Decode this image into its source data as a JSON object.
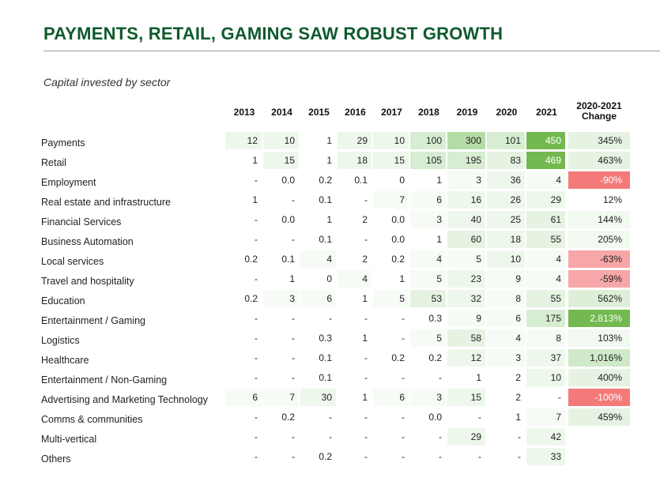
{
  "title": "PAYMENTS, RETAIL, GAMING SAW ROBUST GROWTH",
  "subtitle": "Capital invested by sector",
  "chart_data": {
    "type": "table",
    "columns": [
      "2013",
      "2014",
      "2015",
      "2016",
      "2017",
      "2018",
      "2019",
      "2020",
      "2021",
      "2020-2021 Change"
    ],
    "change_header": [
      "2020-2021",
      "Change"
    ],
    "rows": [
      {
        "sector": "Payments",
        "values": [
          "12",
          "10",
          "1",
          "29",
          "10",
          "100",
          "300",
          "101",
          "450"
        ],
        "change": "345%"
      },
      {
        "sector": "Retail",
        "values": [
          "1",
          "15",
          "1",
          "18",
          "15",
          "105",
          "195",
          "83",
          "469"
        ],
        "change": "463%"
      },
      {
        "sector": "Employment",
        "values": [
          "-",
          "0.0",
          "0.2",
          "0.1",
          "0",
          "1",
          "3",
          "36",
          "4"
        ],
        "change": "-90%"
      },
      {
        "sector": "Real estate and infrastructure",
        "values": [
          "1",
          "-",
          "0.1",
          "-",
          "7",
          "6",
          "16",
          "26",
          "29"
        ],
        "change": "12%"
      },
      {
        "sector": "Financial Services",
        "values": [
          "-",
          "0.0",
          "1",
          "2",
          "0.0",
          "3",
          "40",
          "25",
          "61"
        ],
        "change": "144%"
      },
      {
        "sector": "Business Automation",
        "values": [
          "-",
          "-",
          "0.1",
          "-",
          "0.0",
          "1",
          "60",
          "18",
          "55"
        ],
        "change": "205%"
      },
      {
        "sector": "Local services",
        "values": [
          "0.2",
          "0.1",
          "4",
          "2",
          "0.2",
          "4",
          "5",
          "10",
          "4"
        ],
        "change": "-63%"
      },
      {
        "sector": "Travel and hospitality",
        "values": [
          "-",
          "1",
          "0",
          "4",
          "1",
          "5",
          "23",
          "9",
          "4"
        ],
        "change": "-59%"
      },
      {
        "sector": "Education",
        "values": [
          "0.2",
          "3",
          "6",
          "1",
          "5",
          "53",
          "32",
          "8",
          "55"
        ],
        "change": "562%"
      },
      {
        "sector": "Entertainment / Gaming",
        "values": [
          "-",
          "-",
          "-",
          "-",
          "-",
          "0.3",
          "9",
          "6",
          "175"
        ],
        "change": "2,813%"
      },
      {
        "sector": "Logistics",
        "values": [
          "-",
          "-",
          "0.3",
          "1",
          "-",
          "5",
          "58",
          "4",
          "8"
        ],
        "change": "103%"
      },
      {
        "sector": "Healthcare",
        "values": [
          "-",
          "-",
          "0.1",
          "-",
          "0.2",
          "0.2",
          "12",
          "3",
          "37"
        ],
        "change": "1,016%"
      },
      {
        "sector": "Entertainment / Non-Gaming",
        "values": [
          "-",
          "-",
          "0.1",
          "-",
          "-",
          "-",
          "1",
          "2",
          "10"
        ],
        "change": "400%"
      },
      {
        "sector": "Advertising and Marketing Technology",
        "values": [
          "6",
          "7",
          "30",
          "1",
          "6",
          "3",
          "15",
          "2",
          "-"
        ],
        "change": "-100%"
      },
      {
        "sector": "Comms & communities",
        "values": [
          "-",
          "0.2",
          "-",
          "-",
          "-",
          "0.0",
          "-",
          "1",
          "7"
        ],
        "change": "459%"
      },
      {
        "sector": "Multi-vertical",
        "values": [
          "-",
          "-",
          "-",
          "-",
          "-",
          "-",
          "29",
          "-",
          "42"
        ],
        "change": ""
      },
      {
        "sector": "Others",
        "values": [
          "-",
          "-",
          "0.2",
          "-",
          "-",
          "-",
          "-",
          "-",
          "33"
        ],
        "change": ""
      }
    ]
  }
}
